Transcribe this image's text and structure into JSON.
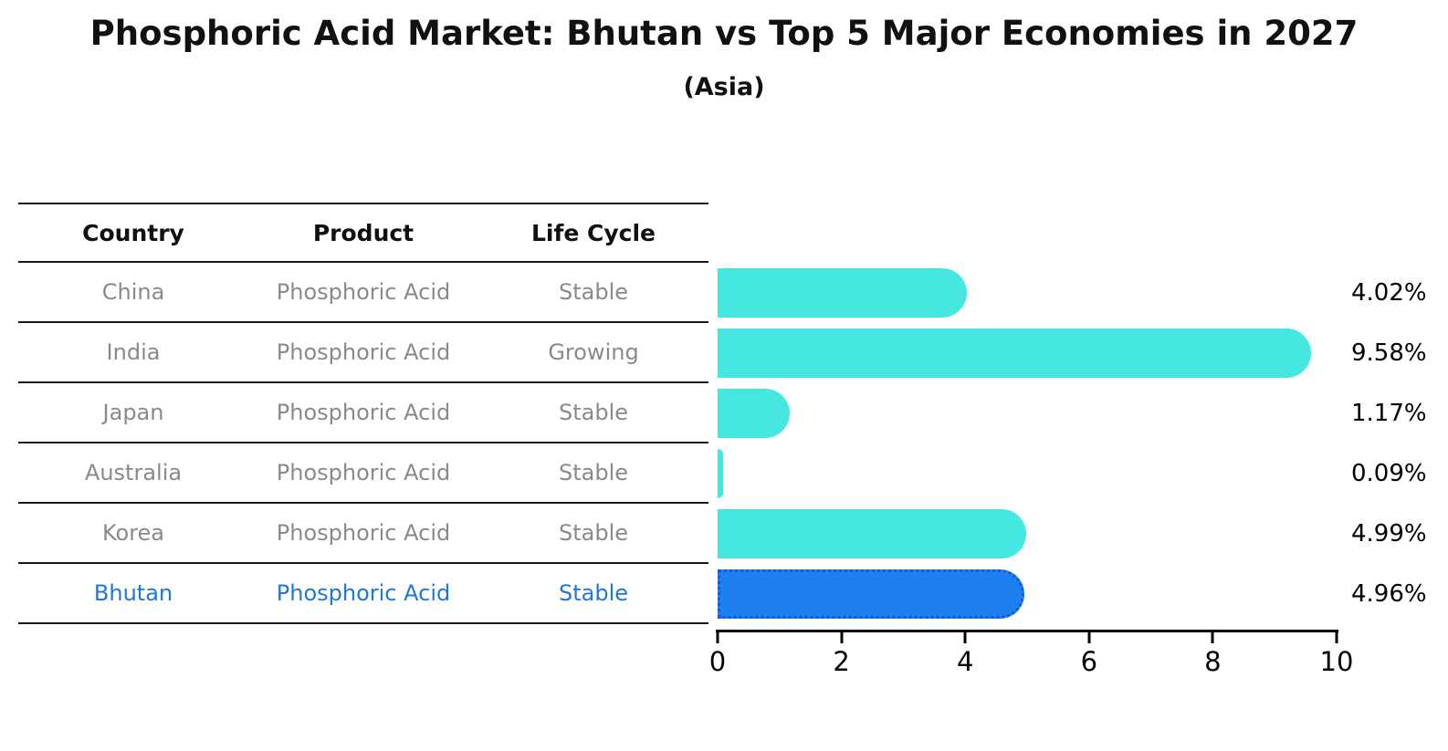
{
  "title": "Phosphoric Acid Market: Bhutan vs Top 5 Major Economies in 2027",
  "subtitle": "(Asia)",
  "table": {
    "headers": [
      "Country",
      "Product",
      "Life Cycle"
    ],
    "rows": [
      {
        "country": "China",
        "product": "Phosphoric Acid",
        "life_cycle": "Stable"
      },
      {
        "country": "India",
        "product": "Phosphoric Acid",
        "life_cycle": "Growing"
      },
      {
        "country": "Japan",
        "product": "Phosphoric Acid",
        "life_cycle": "Stable"
      },
      {
        "country": "Australia",
        "product": "Phosphoric Acid",
        "life_cycle": "Stable"
      },
      {
        "country": "Korea",
        "product": "Phosphoric Acid",
        "life_cycle": "Stable"
      },
      {
        "country": "Bhutan",
        "product": "Phosphoric Acid",
        "life_cycle": "Stable"
      }
    ],
    "highlight_row": "Bhutan"
  },
  "chart_data": {
    "type": "bar",
    "orientation": "horizontal",
    "title": "Phosphoric Acid Market: Bhutan vs Top 5 Major Economies in 2027 (Asia)",
    "categories": [
      "China",
      "India",
      "Japan",
      "Australia",
      "Korea",
      "Bhutan"
    ],
    "values": [
      4.02,
      9.58,
      1.17,
      0.09,
      4.99,
      4.96
    ],
    "value_labels": [
      "4.02%",
      "9.58%",
      "1.17%",
      "0.09%",
      "4.99%",
      "4.96%"
    ],
    "xlim": [
      0,
      10
    ],
    "x_ticks": [
      "0",
      "2",
      "4",
      "6",
      "8",
      "10"
    ],
    "highlight_index": 5,
    "grid": false,
    "legend": "none"
  },
  "colors": {
    "bar": "#45e7e0",
    "highlight_bar": "#1e7ff0",
    "highlight_bar_edge": "#0d5fd0",
    "highlight_text": "#1f78d1",
    "row_text": "#8a8a8a",
    "header_text": "#111111",
    "axis": "#000000",
    "background": "#ffffff"
  }
}
